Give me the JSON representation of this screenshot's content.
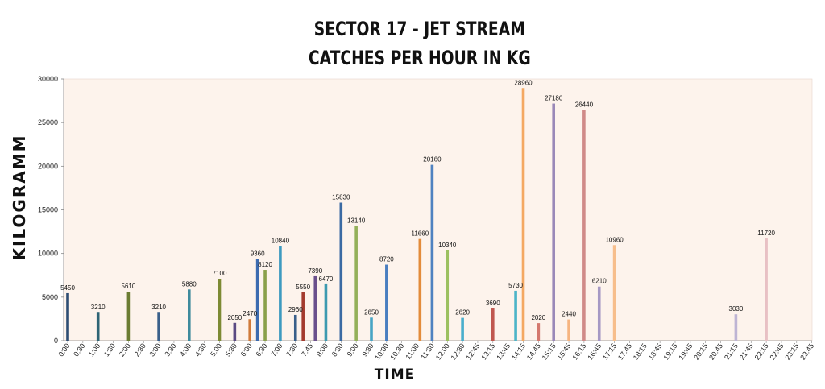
{
  "chart_data": {
    "type": "bar",
    "title_line1": "SECTOR 17 - JET STREAM",
    "title_line2": "CATCHES PER HOUR IN KG",
    "xlabel": "TIME",
    "ylabel": "KILOGRAMM",
    "ylim": [
      0,
      30000
    ],
    "yticks": [
      0,
      5000,
      10000,
      15000,
      20000,
      25000,
      30000
    ],
    "grid": false,
    "legend": "none",
    "plot_background": "#fdf3ec",
    "tick_labels": [
      "0:00",
      "0:30",
      "1:00",
      "1:30",
      "2:00",
      "2:30",
      "3:00",
      "3:30",
      "4:00",
      "4:30",
      "5:00",
      "5:30",
      "6:00",
      "6:30",
      "7:00",
      "7:30",
      "7:45",
      "8:00",
      "8:30",
      "9:00",
      "9:30",
      "10:00",
      "10:30",
      "11:00",
      "11:30",
      "12:00",
      "12:30",
      "12:45",
      "13:15",
      "13:45",
      "14:15",
      "14:45",
      "15:15",
      "15:45",
      "16:15",
      "16:45",
      "17:15",
      "17:45",
      "18:15",
      "18:45",
      "19:15",
      "19:45",
      "20:15",
      "20:45",
      "21:15",
      "21:45",
      "22:15",
      "22:45",
      "23:15",
      "23:45"
    ],
    "bars": [
      {
        "slot": 0,
        "value": 5450,
        "color": "#2e4d73"
      },
      {
        "slot": 2,
        "value": 3210,
        "color": "#2e6475"
      },
      {
        "slot": 4,
        "value": 5610,
        "color": "#6b7c32"
      },
      {
        "slot": 6,
        "value": 3210,
        "color": "#3a5f8a"
      },
      {
        "slot": 8,
        "value": 5880,
        "color": "#3e8a9c"
      },
      {
        "slot": 10,
        "value": 7100,
        "color": "#7d8a34"
      },
      {
        "slot": 11,
        "value": 2050,
        "color": "#5b4a82"
      },
      {
        "slot": 12,
        "value": 2470,
        "color": "#d07a3a"
      },
      {
        "slot": 12.5,
        "value": 9360,
        "color": "#3c6bb0"
      },
      {
        "slot": 13,
        "value": 8120,
        "color": "#8aa04a"
      },
      {
        "slot": 14,
        "value": 10840,
        "color": "#3d9ac0"
      },
      {
        "slot": 15,
        "value": 2960,
        "color": "#3a5f8a"
      },
      {
        "slot": 15.5,
        "value": 5550,
        "color": "#a33a2e"
      },
      {
        "slot": 16.3,
        "value": 7390,
        "color": "#6a4f8c"
      },
      {
        "slot": 17,
        "value": 6470,
        "color": "#3d9ab0"
      },
      {
        "slot": 18,
        "value": 15830,
        "color": "#3b6aa3"
      },
      {
        "slot": 19,
        "value": 13140,
        "color": "#94b05a"
      },
      {
        "slot": 20,
        "value": 2650,
        "color": "#48a4c4"
      },
      {
        "slot": 21,
        "value": 8720,
        "color": "#4a7ec0"
      },
      {
        "slot": 23.2,
        "value": 11660,
        "color": "#e38b3a"
      },
      {
        "slot": 24,
        "value": 20160,
        "color": "#4f82c0"
      },
      {
        "slot": 25,
        "value": 10340,
        "color": "#9cc060"
      },
      {
        "slot": 26,
        "value": 2620,
        "color": "#4aaecc"
      },
      {
        "slot": 28,
        "value": 3690,
        "color": "#c0574f"
      },
      {
        "slot": 29.5,
        "value": 5730,
        "color": "#4cb4c8"
      },
      {
        "slot": 30,
        "value": 28960,
        "color": "#f4a862"
      },
      {
        "slot": 31,
        "value": 2020,
        "color": "#d4786e"
      },
      {
        "slot": 32,
        "value": 27180,
        "color": "#9a88b8"
      },
      {
        "slot": 33,
        "value": 2440,
        "color": "#f6b480"
      },
      {
        "slot": 34,
        "value": 26440,
        "color": "#d08a88"
      },
      {
        "slot": 35,
        "value": 6210,
        "color": "#a698c4"
      },
      {
        "slot": 36,
        "value": 10960,
        "color": "#f7be8c"
      },
      {
        "slot": 44,
        "value": 3030,
        "color": "#beb4d4"
      },
      {
        "slot": 46,
        "value": 11720,
        "color": "#e8c0c4"
      }
    ]
  }
}
